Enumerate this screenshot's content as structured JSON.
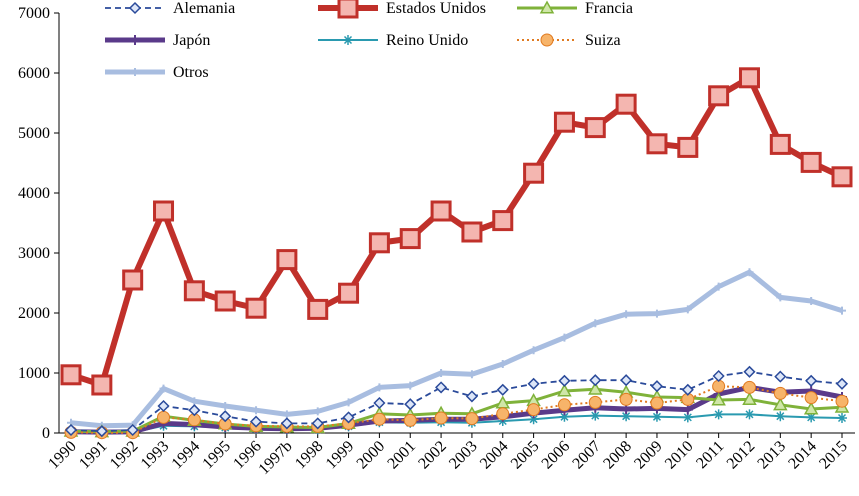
{
  "chart_data": {
    "type": "line",
    "title": "",
    "xlabel": "",
    "ylabel": "",
    "ylim": [
      0,
      7000
    ],
    "yticks": [
      0,
      1000,
      2000,
      3000,
      4000,
      5000,
      6000,
      7000
    ],
    "categories": [
      "1990",
      "1991",
      "1992",
      "1993",
      "1994",
      "1995",
      "1996",
      "1997b",
      "1998",
      "1999",
      "2000",
      "2001",
      "2002",
      "2003",
      "2004",
      "2005",
      "2006",
      "2007",
      "2008",
      "2009",
      "2010",
      "2011",
      "2012",
      "2013",
      "2014",
      "2015"
    ],
    "legend_position": "top",
    "series": [
      {
        "name": "Alemania",
        "color": "#2a4a9a",
        "style": "dashed-diamond",
        "values": [
          50,
          30,
          50,
          450,
          380,
          280,
          190,
          160,
          160,
          260,
          500,
          480,
          760,
          610,
          720,
          820,
          870,
          880,
          880,
          780,
          720,
          950,
          1020,
          940,
          870,
          820
        ]
      },
      {
        "name": "Estados Unidos",
        "color": "#c0302a",
        "style": "thick-square",
        "values": [
          970,
          800,
          2550,
          3700,
          2370,
          2200,
          2080,
          2890,
          2060,
          2330,
          3170,
          3240,
          3700,
          3350,
          3540,
          4330,
          5180,
          5090,
          5480,
          4820,
          4760,
          5620,
          5920,
          4810,
          4510,
          4270
        ]
      },
      {
        "name": "Francia",
        "color": "#7fb23a",
        "style": "triangle",
        "values": [
          30,
          20,
          30,
          280,
          210,
          150,
          110,
          100,
          90,
          160,
          320,
          300,
          330,
          320,
          500,
          540,
          700,
          730,
          680,
          600,
          590,
          550,
          560,
          470,
          400,
          430
        ]
      },
      {
        "name": "Japón",
        "color": "#5a3a8a",
        "style": "thick-star",
        "values": [
          20,
          15,
          20,
          160,
          140,
          100,
          80,
          70,
          80,
          130,
          200,
          210,
          230,
          230,
          270,
          330,
          380,
          420,
          400,
          410,
          390,
          650,
          760,
          680,
          700,
          600
        ]
      },
      {
        "name": "Reino Unido",
        "color": "#2a9ab0",
        "style": "asterisk",
        "values": [
          10,
          5,
          10,
          120,
          110,
          90,
          70,
          60,
          60,
          110,
          180,
          170,
          180,
          170,
          200,
          230,
          270,
          290,
          280,
          270,
          260,
          310,
          310,
          280,
          260,
          250
        ]
      },
      {
        "name": "Suiza",
        "color": "#e07a20",
        "style": "dotted-circle",
        "values": [
          10,
          5,
          5,
          260,
          220,
          150,
          120,
          110,
          110,
          160,
          230,
          210,
          250,
          240,
          320,
          390,
          470,
          510,
          560,
          500,
          560,
          780,
          760,
          660,
          590,
          530
        ]
      },
      {
        "name": "Otros",
        "color": "#a8bde0",
        "style": "thick-cross",
        "values": [
          170,
          120,
          130,
          740,
          530,
          450,
          380,
          310,
          360,
          510,
          760,
          790,
          1000,
          980,
          1150,
          1380,
          1590,
          1830,
          1980,
          1990,
          2060,
          2440,
          2680,
          2260,
          2200,
          2040
        ]
      }
    ]
  }
}
